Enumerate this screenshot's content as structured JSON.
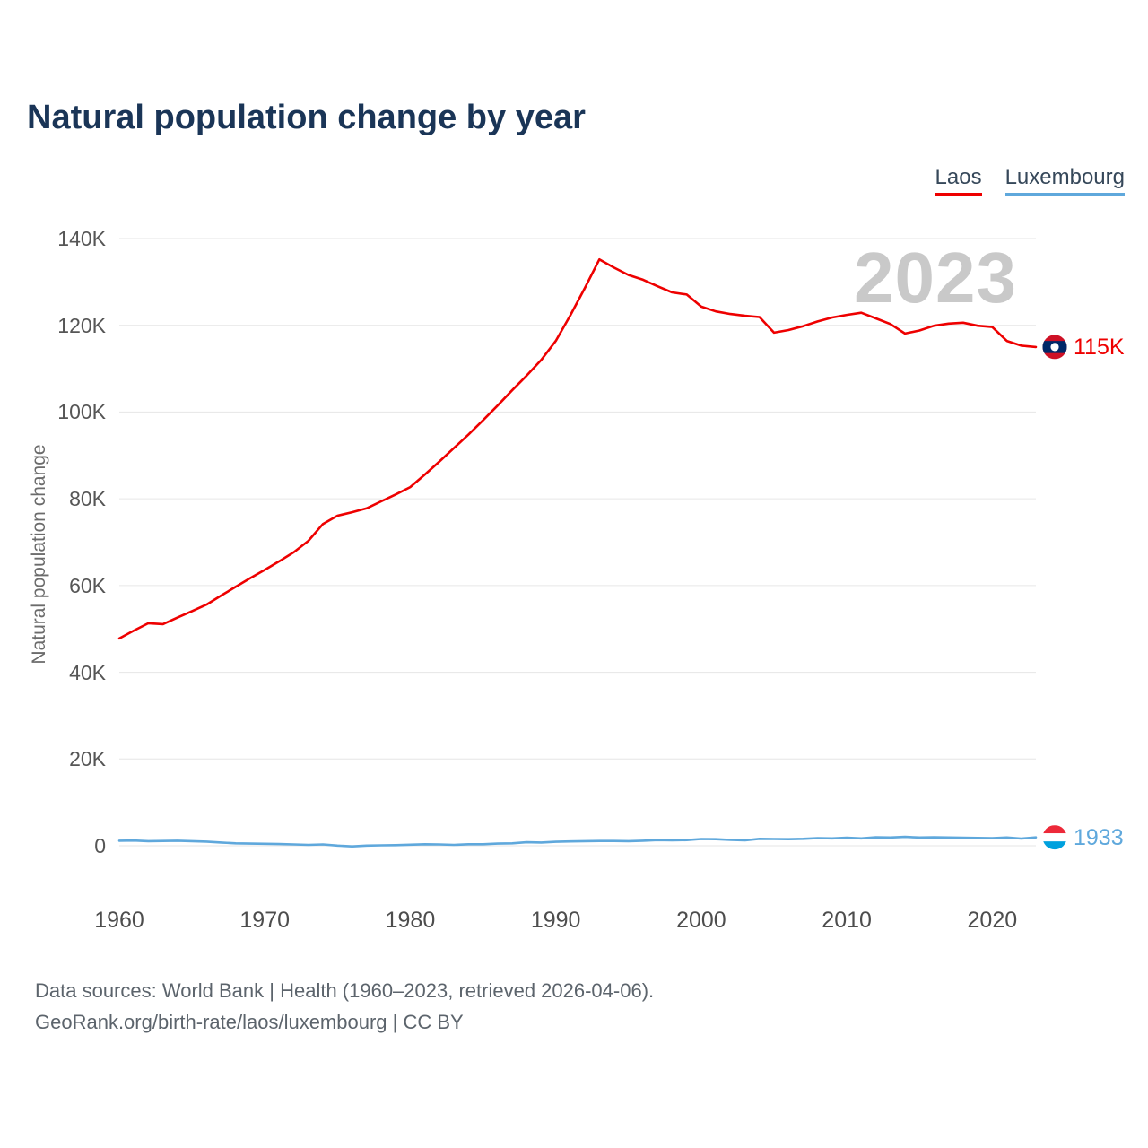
{
  "header": {
    "title": "Natural population change by year"
  },
  "footer": {
    "line1": "Data sources: World Bank | Health (1960–2023, retrieved 2026-04-06).",
    "line2": "GeoRank.org/birth-rate/laos/luxembourg | CC BY"
  },
  "chart_data": {
    "type": "line",
    "title": "Natural population change by year",
    "xlabel": "",
    "ylabel": "Natural population change",
    "grid": "horizontal",
    "legend_position": "top-right",
    "watermark": "2023",
    "xticks": [
      1960,
      1970,
      1980,
      1990,
      2000,
      2010,
      2020
    ],
    "yticks": [
      0,
      20000,
      40000,
      60000,
      80000,
      100000,
      120000,
      140000
    ],
    "ytick_labels": [
      "0",
      "20K",
      "40K",
      "60K",
      "80K",
      "100K",
      "120K",
      "140K"
    ],
    "ylim": [
      -10000,
      146000
    ],
    "x": [
      1960,
      1961,
      1962,
      1963,
      1964,
      1965,
      1966,
      1967,
      1968,
      1969,
      1970,
      1971,
      1972,
      1973,
      1974,
      1975,
      1976,
      1977,
      1978,
      1979,
      1980,
      1981,
      1982,
      1983,
      1984,
      1985,
      1986,
      1987,
      1988,
      1989,
      1990,
      1991,
      1992,
      1993,
      1994,
      1995,
      1996,
      1997,
      1998,
      1999,
      2000,
      2001,
      2002,
      2003,
      2004,
      2005,
      2006,
      2007,
      2008,
      2009,
      2010,
      2011,
      2012,
      2013,
      2014,
      2015,
      2016,
      2017,
      2018,
      2019,
      2020,
      2021,
      2022,
      2023
    ],
    "series": [
      {
        "name": "Laos",
        "color": "#ee0000",
        "end_label": "115K",
        "flag": {
          "type": "laos",
          "colors": {
            "red": "#ce1126",
            "blue": "#002868",
            "white": "#ffffff"
          }
        },
        "values": [
          47800,
          49600,
          51300,
          51100,
          52600,
          54100,
          55600,
          57700,
          59700,
          61700,
          63600,
          65600,
          67700,
          70300,
          74200,
          76100,
          76900,
          77800,
          79400,
          81000,
          82700,
          85600,
          88600,
          91700,
          94800,
          98100,
          101500,
          105000,
          108400,
          112000,
          116400,
          122300,
          128600,
          135200,
          133300,
          131600,
          130500,
          129000,
          127600,
          127100,
          124300,
          123200,
          122600,
          122200,
          121900,
          118300,
          118900,
          119800,
          120900,
          121800,
          122400,
          122900,
          121600,
          120300,
          118100,
          118800,
          119900,
          120400,
          120600,
          119900,
          119600,
          116400,
          115300,
          115000
        ]
      },
      {
        "name": "Luxembourg",
        "color": "#5fa8dc",
        "end_label": "1933",
        "flag": {
          "type": "luxembourg",
          "colors": {
            "red": "#ed2939",
            "white": "#ffffff",
            "blue": "#00a1de"
          }
        },
        "values": [
          1150,
          1200,
          1050,
          1100,
          1150,
          1050,
          950,
          750,
          550,
          500,
          450,
          400,
          300,
          200,
          300,
          50,
          -150,
          50,
          100,
          150,
          250,
          350,
          300,
          200,
          350,
          350,
          500,
          550,
          800,
          750,
          900,
          1000,
          1050,
          1100,
          1100,
          1050,
          1150,
          1300,
          1250,
          1300,
          1550,
          1500,
          1350,
          1250,
          1600,
          1550,
          1500,
          1600,
          1750,
          1700,
          1850,
          1700,
          1950,
          1900,
          2050,
          1900,
          1950,
          1900,
          1850,
          1800,
          1750,
          1900,
          1650,
          1933
        ]
      }
    ]
  }
}
